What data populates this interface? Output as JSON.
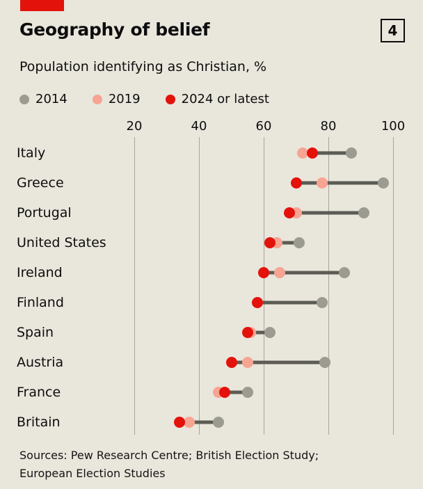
{
  "header": {
    "title": "Geography of belief",
    "page_number": "4",
    "subtitle": "Population identifying as Christian, %"
  },
  "footer": {
    "sources_line1": "Sources: Pew Research Centre; British Election Study;",
    "sources_line2": "European Election Studies"
  },
  "colors": {
    "brand_red": "#e3120b",
    "background": "#e9e6dc",
    "connector": "#5c5c55",
    "gridline": "#a8a499"
  },
  "chart_data": {
    "type": "scatter",
    "subtype": "dot-range-plot",
    "title": "Geography of belief",
    "subtitle": "Population identifying as Christian, %",
    "xlabel": "",
    "ylabel": "",
    "xlim": [
      14,
      104
    ],
    "x_ticks": [
      20,
      40,
      60,
      80,
      100
    ],
    "grid": "vertical",
    "legend_position": "top-left",
    "categories": [
      "Italy",
      "Greece",
      "Portugal",
      "United States",
      "Ireland",
      "Finland",
      "Spain",
      "Austria",
      "France",
      "Britain"
    ],
    "series": [
      {
        "name": "2014",
        "color": "#9c9b8f",
        "values": [
          87,
          97,
          91,
          71,
          85,
          78,
          62,
          79,
          55,
          46
        ]
      },
      {
        "name": "2019",
        "color": "#f7a492",
        "values": [
          72,
          78,
          70,
          64,
          65,
          58,
          56,
          55,
          46,
          37
        ]
      },
      {
        "name": "2024 or latest",
        "color": "#e3120b",
        "values": [
          75,
          70,
          68,
          62,
          60,
          58,
          55,
          50,
          48,
          34
        ]
      }
    ]
  }
}
